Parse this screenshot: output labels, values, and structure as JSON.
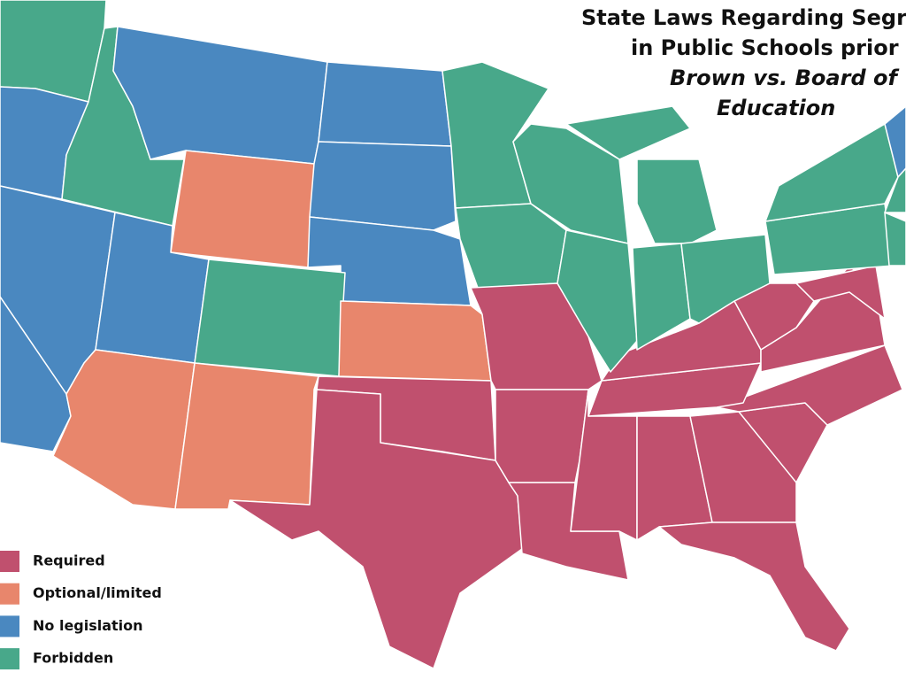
{
  "title": {
    "lines": [
      "State Laws Regarding Segrega",
      "in Public Schools prior to",
      "Brown vs. Board of",
      "Education"
    ]
  },
  "legend": [
    {
      "label": "Required",
      "color": "#c0506e"
    },
    {
      "label": "Optional/limited",
      "color": "#e8866c"
    },
    {
      "label": "No legislation",
      "color": "#4a88c0"
    },
    {
      "label": "Forbidden",
      "color": "#48a88a"
    }
  ]
}
